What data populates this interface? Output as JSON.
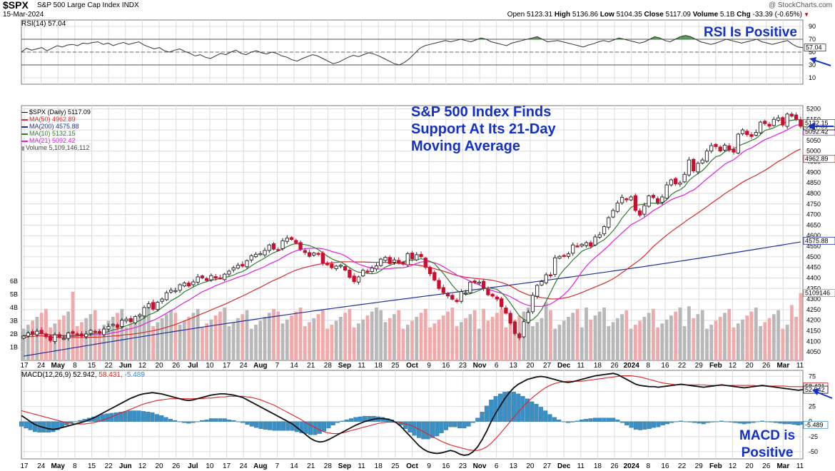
{
  "header": {
    "symbol": "$SPX",
    "name": "S&P 500 Large Cap Index INDX",
    "date": "15-Mar-2024",
    "source": "@ StockCharts.com",
    "ohlc": {
      "open_label": "Open",
      "open": "5123.31",
      "high_label": "High",
      "high": "5136.86",
      "low_label": "Low",
      "low": "5104.35",
      "close_label": "Close",
      "close": "5117.09",
      "volume_label": "Volume",
      "volume": "5.1B",
      "chg_label": "Chg",
      "chg": "-33.39 (-0.65%)"
    }
  },
  "annotations": {
    "rsi": "RSI Is Positive",
    "main_line1": "S&P 500 Index Finds",
    "main_line2": "Support At Its 21-Day",
    "main_line3": "Moving Average",
    "macd_line1": "MACD is",
    "macd_line2": "Positive"
  },
  "colors": {
    "up": "#222222",
    "down": "#c8102e",
    "ma50": "#d42b2b",
    "ma200": "#1f2e9c",
    "ma10": "#2e7d32",
    "ma21": "#dd22dd",
    "volume_up": "#b8b8b8",
    "volume_down": "#f2a9aa",
    "rsi_line": "#333333",
    "rsi_fill": "#3d8c3d",
    "macd_line": "#111111",
    "signal_line": "#dd2222",
    "histogram": "#3a8fc4",
    "annotation": "#1330c8",
    "grid": "#dcdcdc"
  },
  "chart_data": [
    {
      "type": "line",
      "name": "RSI(14)",
      "legend": "RSI(14) 57.04",
      "last_value": "57.04",
      "yticks": [
        10,
        30,
        50,
        70,
        90
      ],
      "ylim": [
        0,
        100
      ],
      "reference_lines": [
        30,
        50,
        70
      ],
      "values": [
        50,
        56,
        53,
        55,
        57,
        52,
        56,
        60,
        58,
        61,
        62,
        60,
        64,
        63,
        65,
        66,
        62,
        64,
        60,
        63,
        65,
        62,
        64,
        66,
        61,
        58,
        55,
        57,
        52,
        50,
        53,
        55,
        51,
        48,
        44,
        46,
        42,
        40,
        44,
        48,
        46,
        50,
        53,
        48,
        46,
        50,
        52,
        49,
        47,
        50,
        48,
        44,
        42,
        38,
        36,
        40,
        43,
        46,
        44,
        40,
        36,
        32,
        34,
        38,
        42,
        45,
        43,
        46,
        49,
        47,
        44,
        40,
        36,
        32,
        30,
        34,
        40,
        48,
        56,
        60,
        62,
        64,
        66,
        68,
        66,
        68,
        70,
        68,
        66,
        69,
        72,
        70,
        66,
        64,
        62,
        60,
        64,
        66,
        68,
        70,
        72,
        74,
        70,
        66,
        67,
        68,
        66,
        64,
        62,
        60,
        58,
        61,
        63,
        66,
        68,
        66,
        69,
        72,
        70,
        68,
        66,
        64,
        66,
        70,
        74,
        72,
        68,
        66,
        70,
        74,
        76,
        74,
        70,
        66,
        64,
        62,
        64,
        67,
        70,
        68,
        66,
        64,
        66,
        68,
        70,
        66,
        64,
        62,
        64,
        66,
        68,
        62,
        58,
        57
      ]
    },
    {
      "type": "line",
      "name": "$SPX (Daily)",
      "legend": "$SPX (Daily) 5117.09",
      "last_close": "5117.09",
      "yticks": [
        4050,
        4100,
        4150,
        4200,
        4250,
        4300,
        4350,
        4400,
        4450,
        4500,
        4550,
        4600,
        4650,
        4700,
        4750,
        4800,
        4850,
        4900,
        4950,
        5000,
        5050,
        5100,
        5150,
        5200
      ],
      "ylim": [
        4010,
        5215
      ],
      "close": [
        4125,
        4140,
        4133,
        4148,
        4138,
        4122,
        4104,
        4131,
        4120,
        4114,
        4140,
        4137,
        4131,
        4125,
        4135,
        4152,
        4145,
        4138,
        4158,
        4170,
        4180,
        4166,
        4200,
        4205,
        4192,
        4218,
        4226,
        4260,
        4278,
        4252,
        4285,
        4300,
        4330,
        4342,
        4340,
        4368,
        4376,
        4362,
        4381,
        4405,
        4400,
        4388,
        4411,
        4399,
        4398,
        4418,
        4432,
        4448,
        4460,
        4456,
        4482,
        4505,
        4512,
        4515,
        4530,
        4556,
        4536,
        4534,
        4576,
        4588,
        4582,
        4566,
        4536,
        4520,
        4502,
        4518,
        4513,
        4470,
        4463,
        4448,
        4456,
        4460,
        4437,
        4403,
        4382,
        4405,
        4436,
        4427,
        4447,
        4457,
        4489,
        4497,
        4468,
        4485,
        4470,
        4465,
        4515,
        4490,
        4510,
        4500,
        4450,
        4420,
        4390,
        4350,
        4330,
        4315,
        4299,
        4288,
        4335,
        4330,
        4380,
        4378,
        4380,
        4350,
        4320,
        4314,
        4300,
        4264,
        4233,
        4186,
        4137,
        4117,
        4193,
        4237,
        4318,
        4365,
        4383,
        4415,
        4411,
        4495,
        4502,
        4505,
        4514,
        4556,
        4550,
        4559,
        4567,
        4550,
        4594,
        4604,
        4643,
        4685,
        4719,
        4754,
        4781,
        4769,
        4783,
        4719,
        4697,
        4742,
        4788,
        4780,
        4756,
        4783,
        4840,
        4864,
        4845,
        4850,
        4890,
        4958,
        4906,
        4942,
        4958,
        5000,
        5026,
        5021,
        5000,
        5028,
        5005,
        4995,
        5080,
        5100,
        5078,
        5069,
        5088,
        5137,
        5130,
        5118,
        5150,
        5157,
        5123,
        5175,
        5165,
        5150,
        5117
      ],
      "series": [
        {
          "name": "MA(50)",
          "legend": "MA(50) 4962.89",
          "last": "4962.89"
        },
        {
          "name": "MA(200)",
          "legend": "MA(200) 4575.88",
          "last": "4575.88"
        },
        {
          "name": "MA(10)",
          "legend": "MA(10) 5132.15",
          "last": "5132.15"
        },
        {
          "name": "MA(21)",
          "legend": "MA(21) 5092.42",
          "last": "5092.42"
        }
      ],
      "volume": {
        "legend": "Volume 5,109,146,112",
        "last": "5109146",
        "yticks": [
          "1B",
          "2B",
          "3B",
          "4B",
          "5B",
          "6B"
        ]
      }
    },
    {
      "type": "line",
      "name": "MACD(12,26,9)",
      "legend_name": "MACD(12,26,9)",
      "legend_macd": "52.942,",
      "legend_signal": "58.431,",
      "legend_hist": "-5.489",
      "labels": [
        "58.431",
        "52.942",
        "-5.489"
      ],
      "yticks": [
        -50,
        -25,
        0,
        25,
        50,
        75
      ],
      "ylim": [
        -62,
        85
      ],
      "macd": [
        10,
        5,
        0,
        -5,
        -8,
        -10,
        -12,
        -13,
        -12,
        -10,
        -8,
        -6,
        -4,
        -2,
        0,
        3,
        6,
        10,
        14,
        18,
        22,
        26,
        30,
        34,
        38,
        41,
        44,
        46,
        47,
        48,
        47,
        46,
        44,
        42,
        40,
        38,
        36,
        35,
        36,
        38,
        40,
        42,
        44,
        45,
        46,
        46,
        45,
        44,
        42,
        40,
        36,
        32,
        28,
        24,
        20,
        16,
        12,
        8,
        4,
        0,
        -4,
        -10,
        -16,
        -22,
        -28,
        -32,
        -34,
        -33,
        -30,
        -26,
        -22,
        -18,
        -14,
        -10,
        -6,
        -3,
        0,
        2,
        4,
        5,
        5,
        4,
        2,
        -2,
        -8,
        -16,
        -24,
        -32,
        -40,
        -46,
        -50,
        -52,
        -53,
        -52,
        -50,
        -48,
        -50,
        -54,
        -56,
        -55,
        -50,
        -42,
        -30,
        -16,
        0,
        14,
        26,
        38,
        48,
        56,
        62,
        66,
        70,
        72,
        74,
        75,
        74,
        72,
        70,
        68,
        66,
        65,
        66,
        68,
        70,
        72,
        74,
        76,
        77,
        78,
        79,
        80,
        78,
        74,
        70,
        66,
        62,
        60,
        59,
        58,
        58,
        57,
        58,
        59,
        60,
        61,
        62,
        61,
        60,
        59,
        58,
        57,
        58,
        59,
        60,
        61,
        60,
        59,
        58,
        57,
        56,
        57,
        58,
        59,
        60,
        59,
        58,
        57,
        56,
        55,
        54,
        53,
        52,
        53
      ],
      "signal": [
        18,
        16,
        14,
        12,
        10,
        8,
        6,
        4,
        2,
        0,
        -2,
        -3,
        -4,
        -4,
        -4,
        -3,
        -2,
        0,
        2,
        5,
        8,
        11,
        14,
        17,
        20,
        23,
        26,
        29,
        31,
        33,
        35,
        36,
        37,
        38,
        38,
        38,
        38,
        38,
        38,
        38,
        38,
        39,
        39,
        40,
        41,
        41,
        42,
        42,
        42,
        42,
        41,
        40,
        38,
        36,
        33,
        30,
        27,
        23,
        19,
        15,
        11,
        7,
        3,
        -2,
        -6,
        -10,
        -14,
        -17,
        -19,
        -20,
        -20,
        -19,
        -17,
        -15,
        -13,
        -11,
        -9,
        -7,
        -5,
        -3,
        -2,
        -1,
        -1,
        -1,
        -2,
        -4,
        -6,
        -9,
        -13,
        -17,
        -21,
        -25,
        -29,
        -33,
        -36,
        -39,
        -41,
        -43,
        -45,
        -47,
        -48,
        -48,
        -46,
        -42,
        -36,
        -28,
        -20,
        -11,
        -2,
        7,
        16,
        24,
        32,
        39,
        45,
        51,
        56,
        60,
        63,
        65,
        66,
        67,
        67,
        67,
        67,
        68,
        69,
        70,
        71,
        72,
        73,
        74,
        75,
        76,
        76,
        76,
        75,
        74,
        72,
        70,
        68,
        66,
        64,
        63,
        62,
        61,
        61,
        61,
        61,
        61,
        61,
        61,
        60,
        60,
        60,
        60,
        60,
        60,
        60,
        60,
        60,
        60,
        60,
        59,
        59,
        59,
        59,
        59,
        59,
        59,
        58,
        58,
        58,
        58,
        58,
        58
      ]
    }
  ],
  "x_axis": {
    "labels": [
      "17",
      "24",
      "May",
      "8",
      "15",
      "22",
      "Jun",
      "12",
      "20",
      "26",
      "Jul",
      "10",
      "17",
      "24",
      "Aug",
      "7",
      "14",
      "21",
      "28",
      "Sep",
      "11",
      "18",
      "25",
      "Oct",
      "9",
      "16",
      "23",
      "Nov",
      "6",
      "13",
      "20",
      "27",
      "Dec",
      "11",
      "18",
      "26",
      "2024",
      "8",
      "16",
      "22",
      "29",
      "Feb",
      "12",
      "20",
      "26",
      "Mar",
      "11"
    ],
    "bold": [
      "May",
      "Jun",
      "Jul",
      "Aug",
      "Sep",
      "Oct",
      "Nov",
      "Dec",
      "2024",
      "Feb",
      "Mar"
    ]
  }
}
